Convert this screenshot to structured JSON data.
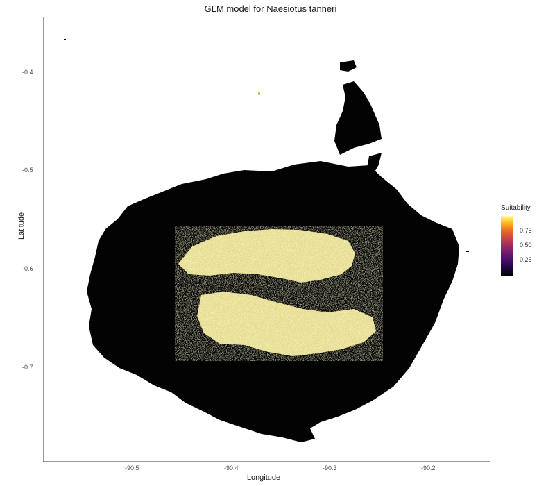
{
  "title": "GLM model for Naesiotus tanneri",
  "axes": {
    "x_label": "Longitude",
    "y_label": "Latitude",
    "x_ticks": [
      "-90.5",
      "-90.4",
      "-90.3",
      "-90.2"
    ],
    "y_ticks": [
      "-0.4",
      "-0.5",
      "-0.6",
      "-0.7"
    ]
  },
  "legend": {
    "title": "Suitability",
    "ticks": [
      "0.75",
      "0.50",
      "0.25"
    ],
    "colors": {
      "low": "#000004",
      "mid": "#bb3754",
      "high": "#fcffa4"
    }
  },
  "map": {
    "land_color": "#030304",
    "high_suitability_color": "#f8ef9c"
  }
}
